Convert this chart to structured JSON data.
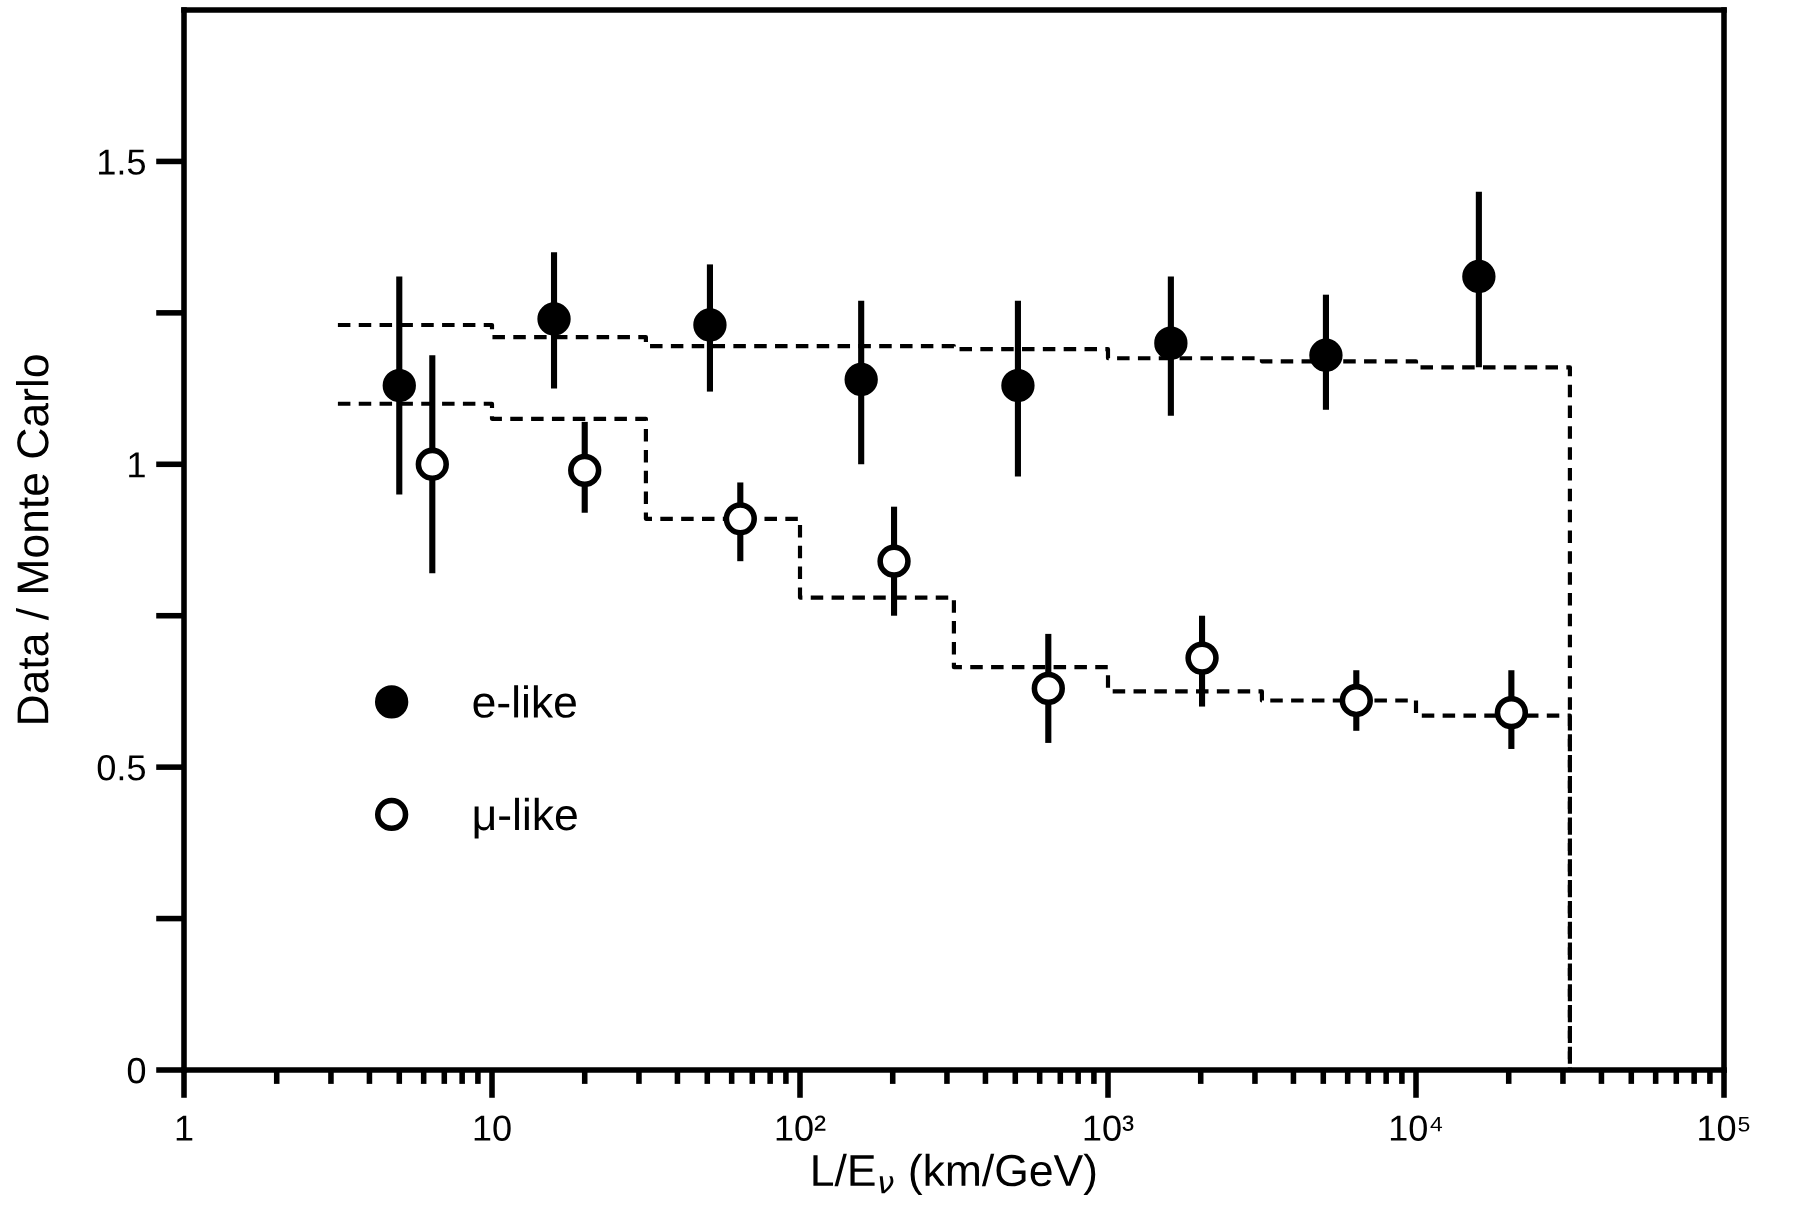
{
  "chart_data": {
    "type": "scatter",
    "xlabel": "L/E$_{ν}$ (km/GeV)",
    "ylabel": "Data / Monte Carlo",
    "log": "x",
    "xlim": [
      1,
      100000
    ],
    "ylim": [
      0,
      1.75
    ],
    "xticks": [
      1,
      10,
      {
        "value": 100,
        "label": "10²"
      },
      {
        "value": 1000,
        "label": "10³"
      },
      {
        "value": 10000,
        "label": "10⁴"
      },
      {
        "value": 100000,
        "label": "10⁵"
      }
    ],
    "yticks": [
      0,
      {
        "value": 0.25,
        "label": null
      },
      0.5,
      {
        "value": 0.75,
        "label": null
      },
      1,
      {
        "value": 1.25,
        "label": null
      },
      1.5
    ],
    "grid": false,
    "legend": "bottom left",
    "marker": "circle",
    "series": [
      {
        "name": "e-like",
        "color": "#000000",
        "x": [
          5.0,
          15.9,
          51,
          158,
          510,
          1600,
          5100,
          16000
        ],
        "values": [
          1.13,
          1.24,
          1.23,
          1.14,
          1.13,
          1.2,
          1.18,
          1.31
        ],
        "errors": [
          [
            0.95,
            1.31
          ],
          [
            1.125,
            1.35
          ],
          [
            1.12,
            1.33
          ],
          [
            1.0,
            1.27
          ],
          [
            0.98,
            1.27
          ],
          [
            1.08,
            1.31
          ],
          [
            1.09,
            1.28
          ],
          [
            1.16,
            1.45
          ]
        ]
      },
      {
        "name": "μ-like",
        "color": "#ffffff",
        "x": [
          6.4,
          20,
          64,
          202,
          640,
          2020,
          6400,
          20400
        ],
        "values": [
          1.0,
          0.99,
          0.91,
          0.84,
          0.63,
          0.68,
          0.61,
          0.59
        ],
        "errors": [
          [
            0.82,
            1.18
          ],
          [
            0.92,
            1.07
          ],
          [
            0.84,
            0.97
          ],
          [
            0.75,
            0.93
          ],
          [
            0.54,
            0.72
          ],
          [
            0.6,
            0.75
          ],
          [
            0.56,
            0.66
          ],
          [
            0.53,
            0.66
          ]
        ]
      },
      {
        "type": "line",
        "marker": "none",
        "line_style": "dashed",
        "color": "#000000",
        "x": [
          3.16,
          10,
          10,
          31.6,
          31.6,
          100,
          100,
          316,
          316,
          1000,
          1000,
          3160,
          3160,
          10000,
          10000,
          31600,
          31600
        ],
        "values": [
          1.23,
          1.23,
          1.21,
          1.21,
          1.195,
          1.195,
          1.195,
          1.195,
          1.19,
          1.19,
          1.175,
          1.175,
          1.17,
          1.17,
          1.16,
          1.16,
          0
        ]
      },
      {
        "type": "line",
        "marker": "none",
        "line_style": "dashed",
        "color": "#000000",
        "x": [
          3.16,
          10,
          10,
          31.6,
          31.6,
          100,
          100,
          316,
          316,
          1000,
          1000,
          3160,
          3160,
          10000,
          10000,
          31600,
          31600
        ],
        "values": [
          1.1,
          1.1,
          1.075,
          1.075,
          0.91,
          0.91,
          0.78,
          0.78,
          0.665,
          0.665,
          0.625,
          0.625,
          0.61,
          0.61,
          0.585,
          0.585,
          0
        ]
      }
    ]
  }
}
